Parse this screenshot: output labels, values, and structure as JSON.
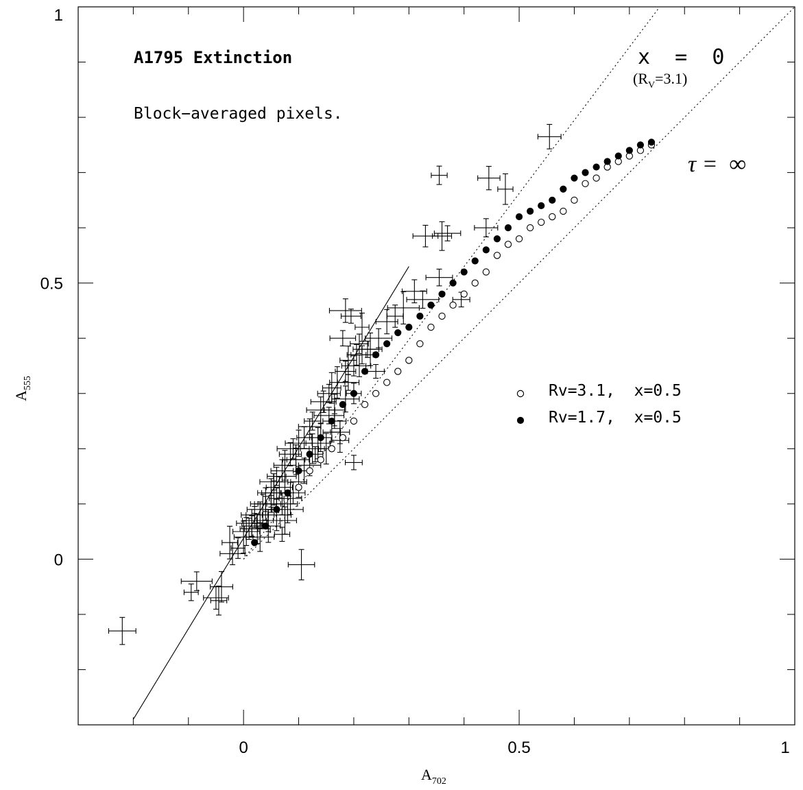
{
  "chart_data": {
    "type": "scatter",
    "title": "A1795 Extinction",
    "subtitle": "Block−averaged pixels.",
    "xlabel": {
      "main": "A",
      "sub": "702"
    },
    "ylabel": {
      "main": "A",
      "sub": "555"
    },
    "xlim": [
      -0.3,
      1.0
    ],
    "ylim": [
      -0.3,
      1.0
    ],
    "x_ticks": [
      {
        "value": 0,
        "label": "0"
      },
      {
        "value": 0.5,
        "label": "0.5"
      },
      {
        "value": 1,
        "label": "1"
      }
    ],
    "y_ticks": [
      {
        "value": 0,
        "label": "0"
      },
      {
        "value": 0.5,
        "label": "0.5"
      },
      {
        "value": 1,
        "label": "1"
      }
    ],
    "grid": false,
    "annotations": {
      "x_eq_0": "x  =  0",
      "rv_label": {
        "pre": "(R",
        "sub": "V",
        "post": "=3.1)"
      },
      "tau_label": "τ =  ∞"
    },
    "legend": {
      "placement": "right-middle",
      "entries": [
        {
          "label": "Rv=3.1,  x=0.5",
          "marker": "open-circle"
        },
        {
          "label": "Rv=1.7,  x=0.5",
          "marker": "filled-circle"
        }
      ]
    },
    "reference_lines": [
      {
        "style": "dotted",
        "x": [
          0,
          1.0
        ],
        "y": [
          0,
          1.0
        ]
      },
      {
        "style": "dotted",
        "x": [
          0,
          0.755
        ],
        "y": [
          0,
          1.0
        ]
      },
      {
        "style": "solid",
        "x": [
          -0.2,
          0.3
        ],
        "y": [
          -0.29,
          0.53
        ]
      }
    ],
    "series": [
      {
        "marker": "open-circle",
        "x": [
          0.1,
          0.12,
          0.14,
          0.16,
          0.18,
          0.2,
          0.22,
          0.24,
          0.26,
          0.28,
          0.3,
          0.32,
          0.34,
          0.36,
          0.38,
          0.4,
          0.42,
          0.44,
          0.46,
          0.48,
          0.5,
          0.52,
          0.54,
          0.56,
          0.58,
          0.6,
          0.62,
          0.64,
          0.66,
          0.68,
          0.7,
          0.72,
          0.74
        ],
        "y": [
          0.13,
          0.16,
          0.18,
          0.2,
          0.22,
          0.25,
          0.28,
          0.3,
          0.32,
          0.34,
          0.36,
          0.39,
          0.42,
          0.44,
          0.46,
          0.48,
          0.5,
          0.52,
          0.55,
          0.57,
          0.58,
          0.6,
          0.61,
          0.62,
          0.63,
          0.65,
          0.68,
          0.69,
          0.71,
          0.72,
          0.73,
          0.74,
          0.75
        ]
      },
      {
        "marker": "filled-circle",
        "x": [
          0.02,
          0.04,
          0.06,
          0.08,
          0.1,
          0.12,
          0.14,
          0.16,
          0.18,
          0.2,
          0.22,
          0.24,
          0.26,
          0.28,
          0.3,
          0.32,
          0.34,
          0.36,
          0.38,
          0.4,
          0.42,
          0.44,
          0.46,
          0.48,
          0.5,
          0.52,
          0.54,
          0.56,
          0.58,
          0.6,
          0.62,
          0.64,
          0.66,
          0.68,
          0.7,
          0.72,
          0.74
        ],
        "y": [
          0.03,
          0.06,
          0.09,
          0.12,
          0.16,
          0.19,
          0.22,
          0.25,
          0.28,
          0.3,
          0.34,
          0.37,
          0.39,
          0.41,
          0.42,
          0.44,
          0.46,
          0.48,
          0.5,
          0.52,
          0.54,
          0.56,
          0.58,
          0.6,
          0.62,
          0.63,
          0.64,
          0.65,
          0.67,
          0.69,
          0.7,
          0.71,
          0.72,
          0.73,
          0.74,
          0.75,
          0.755
        ]
      },
      {
        "marker": "error-bar-cross",
        "x": [
          0.555,
          0.355,
          0.445,
          0.475,
          0.33,
          0.36,
          0.37,
          0.44,
          0.355,
          0.31,
          0.395,
          0.29,
          0.275,
          0.325,
          0.26,
          0.245,
          0.23,
          0.215,
          0.2,
          0.19,
          0.185,
          0.17,
          0.16,
          0.155,
          0.145,
          0.14,
          0.125,
          0.12,
          0.11,
          0.1,
          0.09,
          0.085,
          0.075,
          0.07,
          0.06,
          0.055,
          0.05,
          0.04,
          0.035,
          0.03,
          0.02,
          0.015,
          0.01,
          0.005,
          0.0,
          -0.01,
          -0.02,
          -0.025,
          -0.04,
          -0.05,
          -0.045,
          -0.085,
          -0.095,
          -0.22,
          0.105,
          0.095,
          0.2,
          0.07,
          0.125,
          0.155,
          0.165,
          0.175,
          0.2,
          0.21,
          0.225,
          0.24,
          0.18,
          0.19,
          0.21,
          0.215,
          0.14,
          0.165,
          0.185,
          0.205,
          0.15,
          0.13,
          0.16,
          0.11,
          0.12,
          0.135,
          0.09,
          0.1,
          0.095,
          0.08,
          0.085,
          0.07,
          0.075,
          0.06,
          0.045,
          0.025,
          0.04,
          0.055,
          0.065,
          0.03,
          0.045,
          0.015,
          0.06,
          0.075,
          0.05,
          0.02,
          0.175,
          0.195,
          0.185
        ],
        "y": [
          0.765,
          0.695,
          0.69,
          0.67,
          0.585,
          0.585,
          0.59,
          0.6,
          0.51,
          0.485,
          0.47,
          0.455,
          0.44,
          0.47,
          0.43,
          0.4,
          0.38,
          0.37,
          0.35,
          0.36,
          0.34,
          0.32,
          0.31,
          0.3,
          0.285,
          0.27,
          0.25,
          0.24,
          0.22,
          0.21,
          0.2,
          0.19,
          0.17,
          0.16,
          0.15,
          0.14,
          0.12,
          0.1,
          0.09,
          0.08,
          0.07,
          0.06,
          0.055,
          0.05,
          0.04,
          0.02,
          0.01,
          0.03,
          -0.05,
          -0.07,
          -0.075,
          -0.04,
          -0.06,
          -0.13,
          -0.01,
          0.18,
          0.175,
          0.045,
          0.2,
          0.26,
          0.25,
          0.23,
          0.3,
          0.39,
          0.38,
          0.34,
          0.4,
          0.32,
          0.35,
          0.42,
          0.22,
          0.27,
          0.29,
          0.37,
          0.2,
          0.19,
          0.23,
          0.16,
          0.17,
          0.21,
          0.12,
          0.14,
          0.18,
          0.09,
          0.11,
          0.1,
          0.07,
          0.08,
          0.06,
          0.055,
          0.1,
          0.12,
          0.13,
          0.04,
          0.07,
          0.065,
          0.11,
          0.15,
          0.1,
          0.08,
          0.215,
          0.44,
          0.45
        ]
      }
    ]
  }
}
